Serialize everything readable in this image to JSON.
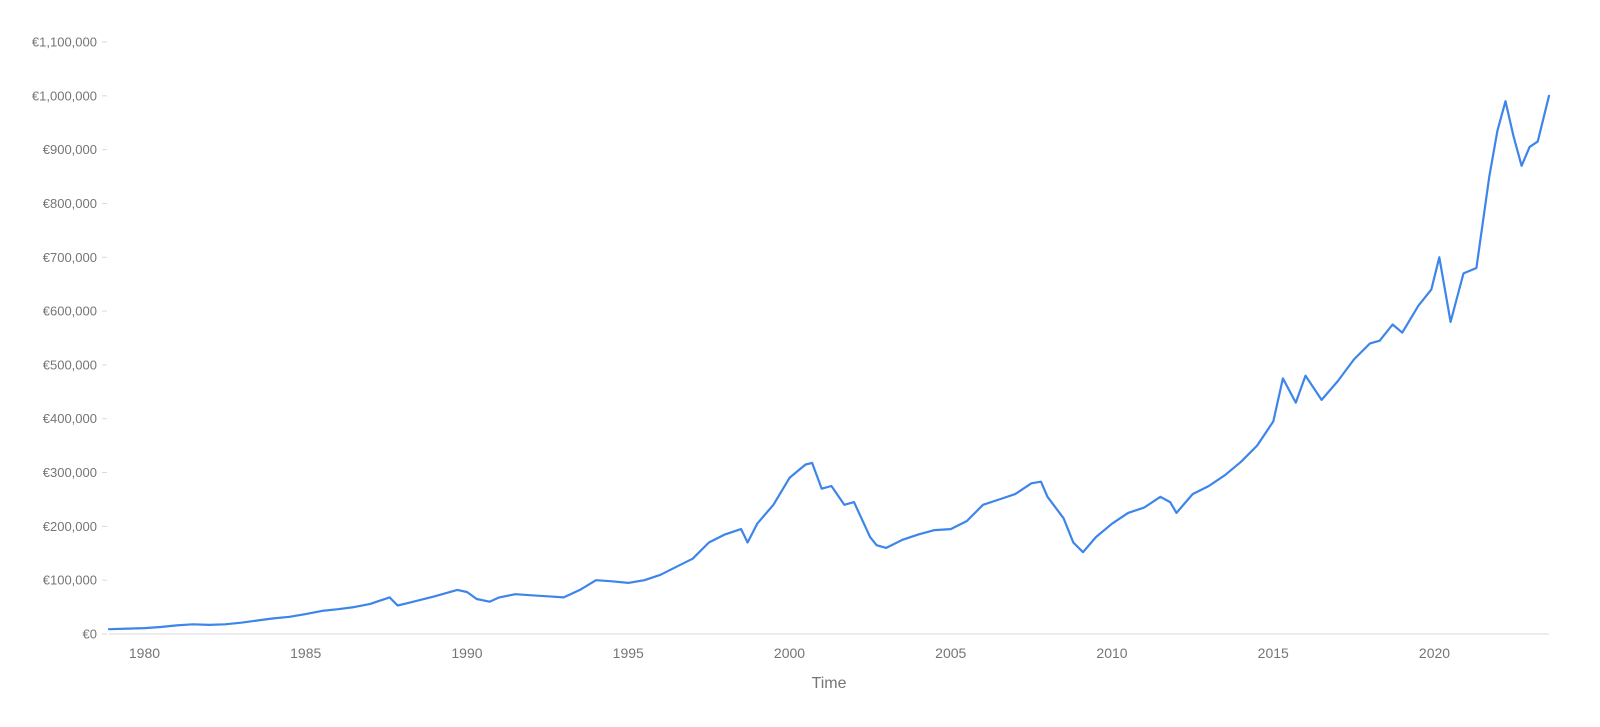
{
  "chart_data": {
    "type": "line",
    "xlabel": "Time",
    "ylabel": "",
    "xlim": [
      1978.9,
      2023.55
    ],
    "ylim": [
      0,
      1100000
    ],
    "grid": false,
    "line_color": "#3d85ea",
    "axis_color": "#d9d9d9",
    "label_color": "#757575",
    "y_ticks": [
      {
        "value": 0,
        "label": "€0"
      },
      {
        "value": 100000,
        "label": "€100,000"
      },
      {
        "value": 200000,
        "label": "€200,000"
      },
      {
        "value": 300000,
        "label": "€300,000"
      },
      {
        "value": 400000,
        "label": "€400,000"
      },
      {
        "value": 500000,
        "label": "€500,000"
      },
      {
        "value": 600000,
        "label": "€600,000"
      },
      {
        "value": 700000,
        "label": "€700,000"
      },
      {
        "value": 800000,
        "label": "€800,000"
      },
      {
        "value": 900000,
        "label": "€900,000"
      },
      {
        "value": 1000000,
        "label": "€1,000,000"
      },
      {
        "value": 1100000,
        "label": "€1,100,000"
      }
    ],
    "x_ticks": [
      {
        "value": 1980,
        "label": "1980"
      },
      {
        "value": 1985,
        "label": "1985"
      },
      {
        "value": 1990,
        "label": "1990"
      },
      {
        "value": 1995,
        "label": "1995"
      },
      {
        "value": 2000,
        "label": "2000"
      },
      {
        "value": 2005,
        "label": "2005"
      },
      {
        "value": 2010,
        "label": "2010"
      },
      {
        "value": 2015,
        "label": "2015"
      },
      {
        "value": 2020,
        "label": "2020"
      }
    ],
    "series": [
      {
        "x": [
          1978.9,
          1979.5,
          1980,
          1980.5,
          1981,
          1981.5,
          1982,
          1982.5,
          1983,
          1983.5,
          1984,
          1984.5,
          1985,
          1985.5,
          1986,
          1986.5,
          1987,
          1987.6,
          1987.85,
          1988.2,
          1989,
          1989.7,
          1990,
          1990.3,
          1990.7,
          1991,
          1991.5,
          1992,
          1992.5,
          1993,
          1993.5,
          1994,
          1994.5,
          1995,
          1995.5,
          1996,
          1996.5,
          1997,
          1997.5,
          1998,
          1998.5,
          1998.7,
          1999,
          1999.5,
          2000,
          2000.2,
          2000.5,
          2000.7,
          2001,
          2001.3,
          2001.7,
          2002,
          2002.5,
          2002.7,
          2003,
          2003.5,
          2004,
          2004.5,
          2005,
          2005.5,
          2006,
          2006.5,
          2007,
          2007.5,
          2007.8,
          2008,
          2008.5,
          2008.8,
          2009.1,
          2009.5,
          2010,
          2010.5,
          2011,
          2011.5,
          2011.8,
          2012,
          2012.5,
          2013,
          2013.5,
          2014,
          2014.5,
          2015,
          2015.3,
          2015.7,
          2016,
          2016.5,
          2017,
          2017.5,
          2018,
          2018.3,
          2018.7,
          2019,
          2019.5,
          2019.9,
          2020.15,
          2020.5,
          2020.9,
          2021.3,
          2021.7,
          2021.95,
          2022.2,
          2022.45,
          2022.7,
          2022.95,
          2023.2,
          2023.55
        ],
        "y": [
          9000,
          10000,
          11000,
          13000,
          16000,
          18000,
          17000,
          18000,
          21000,
          25000,
          29000,
          32000,
          37000,
          43000,
          46000,
          50000,
          56000,
          68000,
          53000,
          58000,
          70000,
          82000,
          78000,
          65000,
          60000,
          68000,
          74000,
          72000,
          70000,
          68000,
          82000,
          100000,
          98000,
          95000,
          100000,
          110000,
          125000,
          140000,
          170000,
          185000,
          195000,
          170000,
          205000,
          240000,
          290000,
          300000,
          315000,
          318000,
          270000,
          275000,
          240000,
          245000,
          180000,
          165000,
          160000,
          175000,
          185000,
          193000,
          195000,
          210000,
          240000,
          250000,
          260000,
          280000,
          283000,
          255000,
          215000,
          170000,
          152000,
          180000,
          205000,
          225000,
          235000,
          255000,
          245000,
          225000,
          260000,
          275000,
          295000,
          320000,
          350000,
          395000,
          475000,
          430000,
          480000,
          435000,
          470000,
          510000,
          540000,
          545000,
          575000,
          560000,
          610000,
          640000,
          700000,
          580000,
          670000,
          680000,
          850000,
          935000,
          990000,
          925000,
          870000,
          905000,
          915000,
          1000000
        ]
      }
    ]
  }
}
